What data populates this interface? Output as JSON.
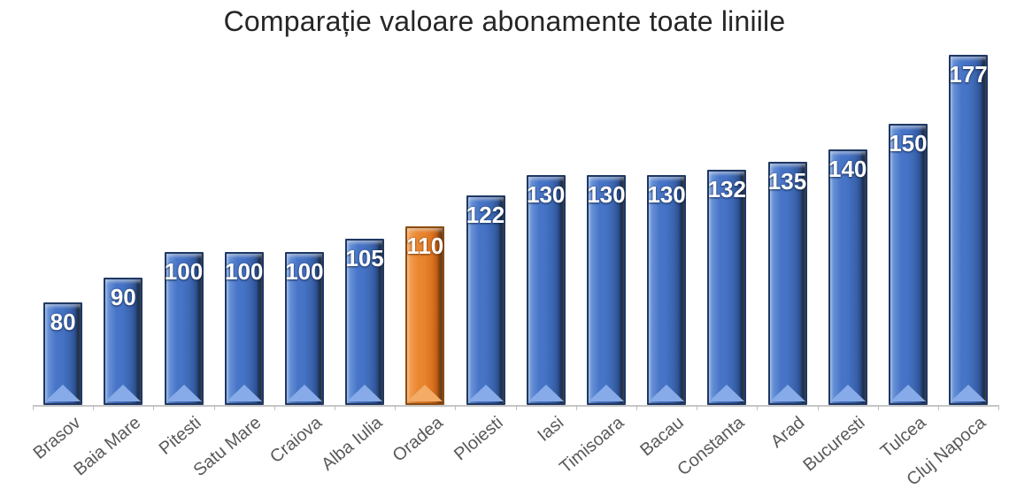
{
  "chart_data": {
    "type": "bar",
    "title": "Comparație valoare abonamente toate liniile",
    "categories": [
      "Brasov",
      "Baia Mare",
      "Pitesti",
      "Satu Mare",
      "Craiova",
      "Alba Iulia",
      "Oradea",
      "Ploiesti",
      "Iasi",
      "Timisoara",
      "Bacau",
      "Constanta",
      "Arad",
      "Bucuresti",
      "Tulcea",
      "Cluj Napoca"
    ],
    "values": [
      80,
      90,
      100,
      100,
      100,
      105,
      110,
      122,
      130,
      130,
      130,
      132,
      135,
      140,
      150,
      177
    ],
    "highlight_index": 6,
    "highlight_category": "Oradea",
    "xlabel": "",
    "ylabel": "",
    "ylim": [
      40,
      185
    ],
    "grid": false,
    "legend": false,
    "data_labels": "inside-end",
    "bar_color": "#4472C4",
    "highlight_color": "#ED7D31",
    "data_label_color": "#FFFFFF",
    "axis_label_color": "#595959",
    "axis_line_color": "#C6C6C6",
    "title_color": "#262626"
  }
}
